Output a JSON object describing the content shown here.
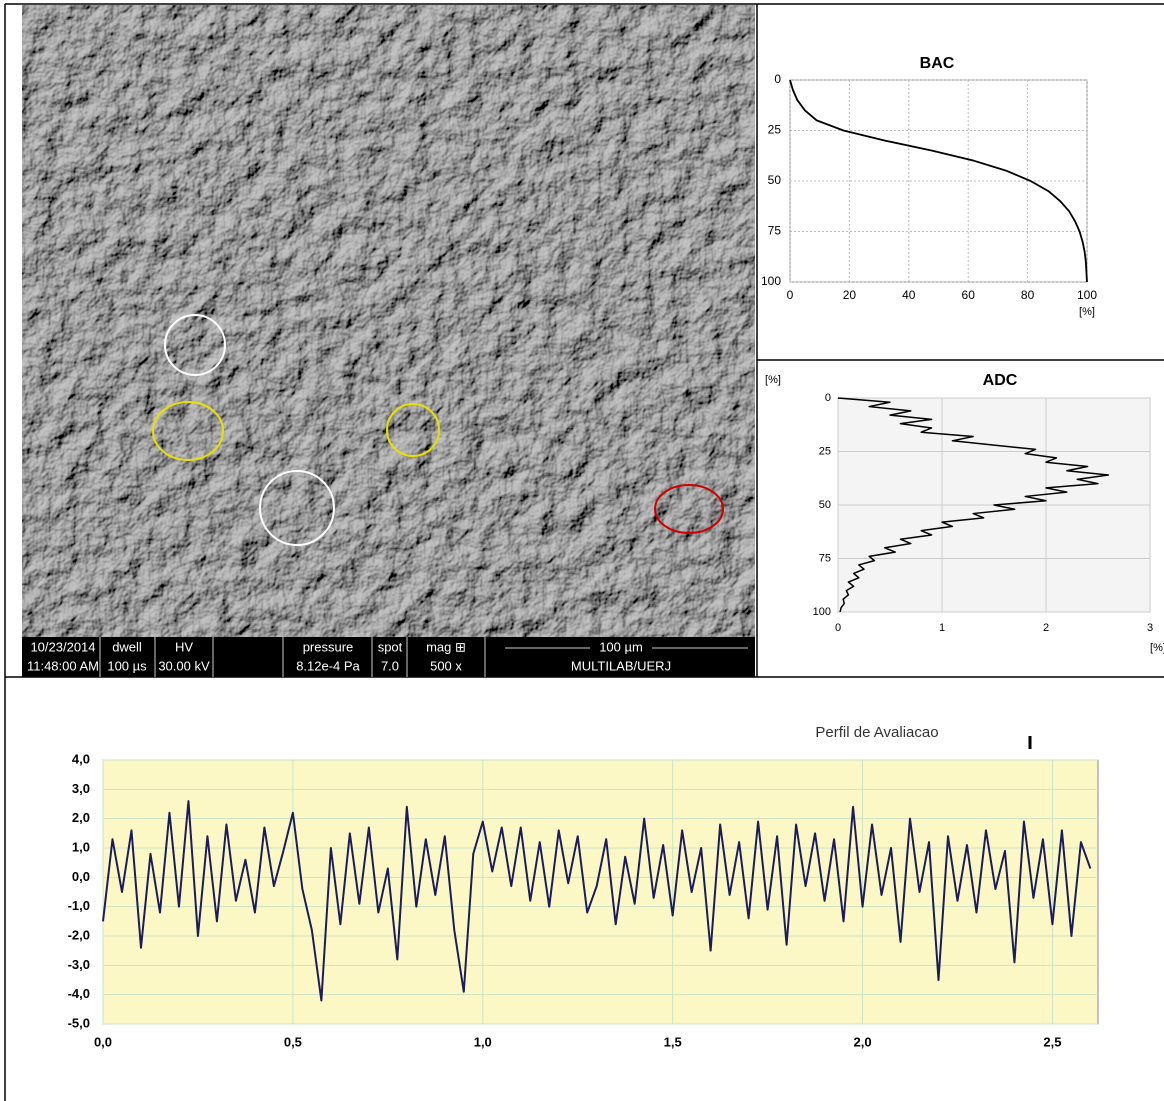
{
  "sem_image": {
    "date": "10/23/2014",
    "time": "11:48:00 AM",
    "dwell_label": "dwell",
    "dwell": "100 µs",
    "hv_label": "HV",
    "hv": "30.00 kV",
    "pressure_label": "pressure",
    "pressure": "8.12e-4 Pa",
    "spot_label": "spot",
    "spot": "7.0",
    "mag_label": "mag ⊞",
    "mag": "500 x",
    "scale_bar": "100 µm",
    "lab": "MULTILAB/UERJ"
  },
  "chart_data": [
    {
      "type": "line",
      "title": "BAC",
      "x_label": "[%]",
      "y_inverted": true,
      "grid": true,
      "xlim": [
        0,
        100
      ],
      "xticks": [
        0,
        20,
        40,
        60,
        80,
        100
      ],
      "ylim": [
        0,
        100
      ],
      "yticks": [
        0,
        25,
        50,
        75,
        100
      ],
      "x": [
        0,
        1,
        2.5,
        5,
        9,
        18,
        32,
        48,
        62,
        73,
        81,
        87,
        91,
        94,
        96,
        97.5,
        98.5,
        99.2,
        99.6,
        99.8,
        100
      ],
      "series": [
        {
          "color": "#000000",
          "values": [
            0,
            5,
            10,
            15,
            20,
            25,
            30,
            35,
            40,
            45,
            50,
            55,
            60,
            65,
            70,
            75,
            80,
            85,
            90,
            95,
            100
          ]
        }
      ]
    },
    {
      "type": "line",
      "title": "ADC",
      "x_label": "[%]",
      "y_label": "[%]",
      "y_inverted": true,
      "grid": true,
      "xlim": [
        0,
        3
      ],
      "xticks": [
        0,
        1,
        2,
        3
      ],
      "ylim": [
        0,
        100
      ],
      "yticks": [
        0,
        25,
        50,
        75,
        100
      ],
      "x": [
        0,
        0.5,
        0.3,
        0.7,
        0.5,
        0.9,
        0.6,
        0.9,
        0.8,
        1.3,
        1.1,
        1.5,
        1.9,
        1.8,
        2.1,
        2.0,
        2.4,
        2.2,
        2.6,
        2.3,
        2.5,
        2.0,
        2.2,
        1.8,
        2.0,
        1.5,
        1.7,
        1.3,
        1.4,
        1.0,
        1.1,
        0.8,
        0.9,
        0.6,
        0.7,
        0.45,
        0.55,
        0.3,
        0.35,
        0.2,
        0.25,
        0.15,
        0.2,
        0.1,
        0.15,
        0.08,
        0.1,
        0.05,
        0.06,
        0.03,
        0.02
      ],
      "series": [
        {
          "color": "#000000",
          "values": [
            0,
            2,
            4,
            6,
            8,
            10,
            12,
            14,
            16,
            18,
            20,
            22,
            24,
            26,
            28,
            30,
            32,
            34,
            36,
            38,
            40,
            42,
            44,
            46,
            48,
            50,
            52,
            54,
            56,
            58,
            60,
            62,
            64,
            66,
            68,
            70,
            72,
            74,
            76,
            78,
            80,
            82,
            84,
            86,
            88,
            90,
            92,
            94,
            96,
            98,
            100
          ]
        }
      ]
    },
    {
      "type": "line",
      "title": "Perfil de Avaliacao",
      "grid": true,
      "xlim": [
        0,
        2.62
      ],
      "xticks": [
        {
          "value": 0,
          "label": "0,0"
        },
        {
          "value": 0.5,
          "label": "0,5"
        },
        {
          "value": 1,
          "label": "1,0"
        },
        {
          "value": 1.5,
          "label": "1,5"
        },
        {
          "value": 2,
          "label": "2,0"
        },
        {
          "value": 2.5,
          "label": "2,5"
        }
      ],
      "ylim": [
        -5,
        4
      ],
      "yticks": [
        {
          "value": 4,
          "label": "4,0"
        },
        {
          "value": 3,
          "label": "3,0"
        },
        {
          "value": 2,
          "label": "2,0"
        },
        {
          "value": 1,
          "label": "1,0"
        },
        {
          "value": 0,
          "label": "0,0"
        },
        {
          "value": -1,
          "label": "-1,0"
        },
        {
          "value": -2,
          "label": "-2,0"
        },
        {
          "value": -3,
          "label": "-3,0"
        },
        {
          "value": -4,
          "label": "-4,0"
        },
        {
          "value": -5,
          "label": "-5,0"
        }
      ],
      "x": [
        0,
        0.025,
        0.05,
        0.075,
        0.1,
        0.125,
        0.15,
        0.175,
        0.2,
        0.225,
        0.25,
        0.275,
        0.3,
        0.325,
        0.35,
        0.375,
        0.4,
        0.425,
        0.45,
        0.475,
        0.5,
        0.525,
        0.55,
        0.575,
        0.6,
        0.625,
        0.65,
        0.675,
        0.7,
        0.725,
        0.75,
        0.775,
        0.8,
        0.825,
        0.85,
        0.875,
        0.9,
        0.925,
        0.95,
        0.975,
        1,
        1.025,
        1.05,
        1.075,
        1.1,
        1.125,
        1.15,
        1.175,
        1.2,
        1.225,
        1.25,
        1.275,
        1.3,
        1.325,
        1.35,
        1.375,
        1.4,
        1.425,
        1.45,
        1.475,
        1.5,
        1.525,
        1.55,
        1.575,
        1.6,
        1.625,
        1.65,
        1.675,
        1.7,
        1.725,
        1.75,
        1.775,
        1.8,
        1.825,
        1.85,
        1.875,
        1.9,
        1.925,
        1.95,
        1.975,
        2,
        2.025,
        2.05,
        2.075,
        2.1,
        2.125,
        2.15,
        2.175,
        2.2,
        2.225,
        2.25,
        2.275,
        2.3,
        2.325,
        2.35,
        2.375,
        2.4,
        2.425,
        2.45,
        2.475,
        2.5,
        2.525,
        2.55,
        2.575,
        2.6
      ],
      "series": [
        {
          "color": "#1c1c5a",
          "values": [
            -1.5,
            1.3,
            -0.5,
            1.6,
            -2.4,
            0.8,
            -1.2,
            2.2,
            -1.0,
            2.6,
            -2.0,
            1.4,
            -1.5,
            1.8,
            -0.8,
            0.6,
            -1.2,
            1.7,
            -0.3,
            0.9,
            2.2,
            -0.4,
            -1.8,
            -4.2,
            1.0,
            -1.6,
            1.5,
            -0.9,
            1.7,
            -1.2,
            0.3,
            -2.8,
            2.4,
            -1.0,
            1.3,
            -0.6,
            1.4,
            -1.8,
            -3.9,
            0.8,
            1.9,
            0.2,
            1.7,
            -0.3,
            1.7,
            -0.8,
            1.2,
            -1.0,
            1.6,
            -0.2,
            1.4,
            -1.2,
            -0.3,
            1.3,
            -1.6,
            0.7,
            -0.9,
            2.0,
            -0.7,
            1.1,
            -1.3,
            1.6,
            -0.5,
            1.0,
            -2.5,
            1.8,
            -0.6,
            1.2,
            -1.4,
            1.9,
            -1.1,
            1.4,
            -2.3,
            1.8,
            -0.3,
            1.5,
            -0.8,
            1.3,
            -1.5,
            2.4,
            -1.0,
            1.8,
            -0.6,
            1.0,
            -2.2,
            2.0,
            -0.5,
            1.2,
            -3.5,
            1.4,
            -0.8,
            1.1,
            -1.2,
            1.6,
            -0.4,
            0.9,
            -2.9,
            1.9,
            -0.7,
            1.3,
            -1.6,
            1.6,
            -2.0,
            1.2,
            0.3
          ]
        }
      ]
    }
  ]
}
